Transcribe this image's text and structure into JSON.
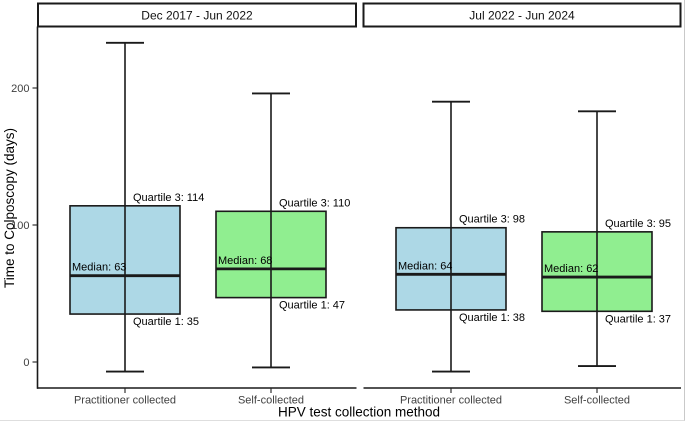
{
  "figure": {
    "y_axis_title": "Time to Colposcopy (days)",
    "x_axis_title": "HPV test collection method"
  },
  "chart_data": {
    "type": "boxplot",
    "title": "",
    "xlabel": "HPV test collection method",
    "ylabel": "Time to Colposcopy (days)",
    "ylim": [
      -20,
      245
    ],
    "y_ticks": [
      0,
      100,
      200
    ],
    "grid": "off",
    "legend": "none",
    "categories": [
      "Practitioner collected",
      "Self-collected"
    ],
    "colors": {
      "practitioner_fill": "#ADD8E6",
      "self_fill": "#90EE90",
      "line": "#1a1a1a"
    },
    "facets": [
      {
        "label": "Dec 2017 - Jun 2022",
        "boxes": [
          {
            "category": "Practitioner collected",
            "fill": "#ADD8E6",
            "median": 63,
            "q1": 35,
            "q3": 114,
            "whisker_low": -7,
            "whisker_high": 233,
            "labels": {
              "median": "Median: 63",
              "q1": "Quartile 1: 35",
              "q3": "Quartile 3: 114"
            }
          },
          {
            "category": "Self-collected",
            "fill": "#90EE90",
            "median": 68,
            "q1": 47,
            "q3": 110,
            "whisker_low": -4,
            "whisker_high": 196,
            "labels": {
              "median": "Median: 68",
              "q1": "Quartile 1: 47",
              "q3": "Quartile 3: 110"
            }
          }
        ]
      },
      {
        "label": "Jul 2022 - Jun 2024",
        "boxes": [
          {
            "category": "Practitioner collected",
            "fill": "#ADD8E6",
            "median": 64,
            "q1": 38,
            "q3": 98,
            "whisker_low": -7,
            "whisker_high": 190,
            "labels": {
              "median": "Median: 64",
              "q1": "Quartile 1: 38",
              "q3": "Quartile 3: 98"
            }
          },
          {
            "category": "Self-collected",
            "fill": "#90EE90",
            "median": 62,
            "q1": 37,
            "q3": 95,
            "whisker_low": -3,
            "whisker_high": 183,
            "labels": {
              "median": "Median: 62",
              "q1": "Quartile 1: 37",
              "q3": "Quartile 3: 95"
            }
          }
        ]
      }
    ]
  }
}
